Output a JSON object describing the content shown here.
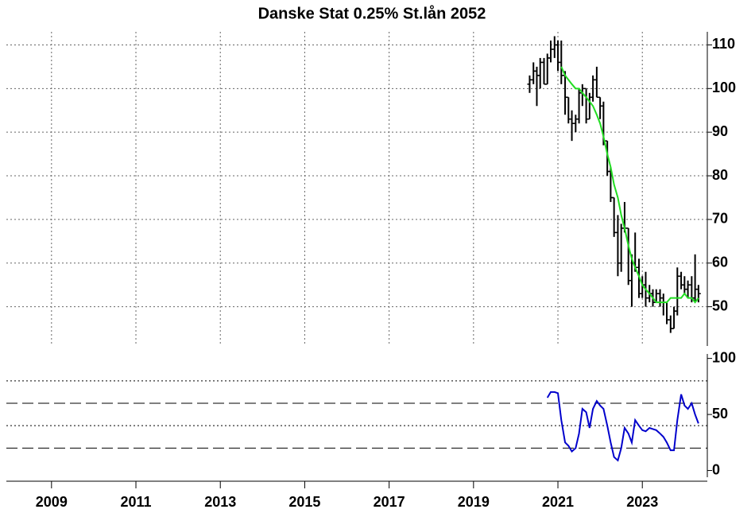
{
  "chart_data": [
    {
      "type": "ohlc",
      "title": "Danske Stat 0.25% St.lån 2052",
      "x": [
        2020.33,
        2020.42,
        2020.5,
        2020.58,
        2020.67,
        2020.75,
        2020.83,
        2020.92,
        2021.0,
        2021.08,
        2021.17,
        2021.25,
        2021.33,
        2021.42,
        2021.5,
        2021.58,
        2021.67,
        2021.75,
        2021.83,
        2021.92,
        2022.0,
        2022.08,
        2022.17,
        2022.25,
        2022.33,
        2022.42,
        2022.5,
        2022.58,
        2022.67,
        2022.75,
        2022.83,
        2022.92,
        2023.0,
        2023.08,
        2023.17,
        2023.25,
        2023.33,
        2023.42,
        2023.5,
        2023.58,
        2023.67,
        2023.75,
        2023.83,
        2023.92,
        2024.0,
        2024.08,
        2024.17,
        2024.25,
        2024.33
      ],
      "open": [
        101,
        102,
        104,
        103,
        106,
        101,
        107,
        109,
        110,
        106,
        103,
        98,
        93,
        92,
        93,
        99,
        100,
        93,
        98,
        102,
        98,
        96,
        88,
        81,
        75,
        67,
        60,
        68,
        68,
        56,
        60,
        59,
        53,
        55,
        52,
        53,
        51,
        53,
        52,
        51,
        47,
        45,
        49,
        57,
        55,
        54,
        55,
        52,
        54
      ],
      "high": [
        103,
        106,
        105,
        107,
        107,
        108,
        111,
        112,
        111,
        111,
        104,
        98,
        95,
        94,
        100,
        101,
        100,
        99,
        103,
        105,
        98,
        97,
        88,
        82,
        75,
        71,
        69,
        74,
        68,
        62,
        67,
        61,
        57,
        58,
        55,
        54,
        54,
        54,
        53,
        51,
        48,
        50,
        59,
        58,
        57,
        56,
        57,
        62,
        55
      ],
      "low": [
        99,
        101,
        96,
        100,
        101,
        101,
        106,
        107,
        104,
        101,
        94,
        92,
        88,
        90,
        92,
        96,
        92,
        93,
        97,
        98,
        93,
        87,
        80,
        74,
        66,
        57,
        58,
        67,
        55,
        50,
        58,
        52,
        52,
        50,
        51,
        50,
        51,
        50,
        48,
        46,
        44,
        45,
        48,
        54,
        53,
        52,
        51,
        51,
        51
      ],
      "close": [
        102,
        104,
        103,
        106,
        101,
        107,
        109,
        110,
        106,
        103,
        98,
        93,
        92,
        93,
        99,
        100,
        93,
        98,
        102,
        98,
        96,
        88,
        81,
        75,
        67,
        60,
        68,
        68,
        56,
        60,
        59,
        53,
        55,
        52,
        53,
        51,
        53,
        52,
        51,
        47,
        45,
        49,
        57,
        55,
        54,
        55,
        52,
        54,
        53
      ],
      "bar_color": "#000000",
      "ma": {
        "color": "#22dd22",
        "values": [
          null,
          null,
          null,
          null,
          null,
          null,
          null,
          null,
          null,
          105,
          103,
          102,
          101,
          100,
          100,
          99,
          98,
          97,
          96,
          94,
          92,
          89,
          85,
          82,
          78,
          75,
          71,
          68,
          64,
          61,
          59,
          57,
          55,
          54,
          53,
          52,
          51,
          51,
          51,
          51,
          52,
          52,
          52,
          52,
          53,
          52,
          52,
          51,
          52
        ]
      },
      "xlim": [
        2007.93,
        2024.54
      ],
      "xticks": [
        2009,
        2011,
        2013,
        2015,
        2017,
        2019,
        2021,
        2023
      ],
      "ylim": [
        41,
        113
      ],
      "yticks": [
        50,
        60,
        70,
        80,
        90,
        100,
        110
      ],
      "grid": true
    },
    {
      "type": "line",
      "color": "#0000cc",
      "values": [
        null,
        null,
        null,
        null,
        null,
        65,
        70,
        70,
        69,
        45,
        25,
        22,
        17,
        20,
        33,
        55,
        52,
        38,
        55,
        62,
        58,
        55,
        40,
        25,
        12,
        9,
        20,
        38,
        33,
        25,
        45,
        40,
        36,
        35,
        38,
        37,
        36,
        33,
        30,
        25,
        18,
        18,
        45,
        68,
        58,
        55,
        60,
        50,
        42
      ],
      "ylim": [
        -6,
        104
      ],
      "yticks": [
        0,
        50,
        100
      ],
      "levels": [
        {
          "value": 80,
          "style": "dotted"
        },
        {
          "value": 60,
          "style": "dashed"
        },
        {
          "value": 40,
          "style": "dotted"
        },
        {
          "value": 20,
          "style": "dashed"
        }
      ]
    }
  ]
}
